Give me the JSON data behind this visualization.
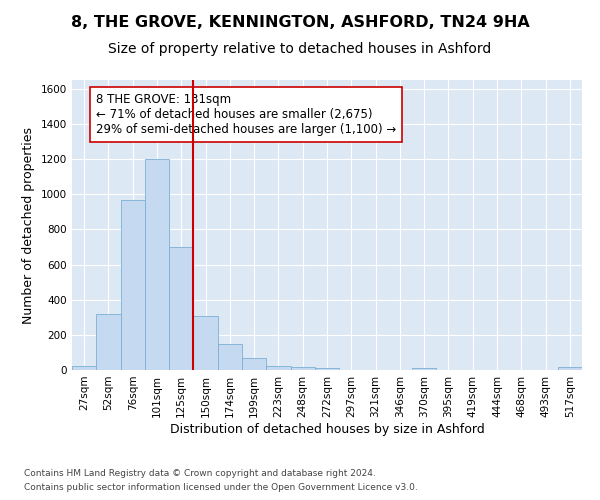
{
  "title": "8, THE GROVE, KENNINGTON, ASHFORD, TN24 9HA",
  "subtitle": "Size of property relative to detached houses in Ashford",
  "xlabel": "Distribution of detached houses by size in Ashford",
  "ylabel": "Number of detached properties",
  "categories": [
    "27sqm",
    "52sqm",
    "76sqm",
    "101sqm",
    "125sqm",
    "150sqm",
    "174sqm",
    "199sqm",
    "223sqm",
    "248sqm",
    "272sqm",
    "297sqm",
    "321sqm",
    "346sqm",
    "370sqm",
    "395sqm",
    "419sqm",
    "444sqm",
    "468sqm",
    "493sqm",
    "517sqm"
  ],
  "values": [
    25,
    320,
    970,
    1200,
    700,
    310,
    150,
    70,
    25,
    15,
    10,
    0,
    0,
    0,
    10,
    0,
    0,
    0,
    0,
    0,
    15
  ],
  "bar_color": "#c5d9f0",
  "bar_edge_color": "#7bafd4",
  "bar_linewidth": 0.6,
  "vline_x": 4.5,
  "vline_color": "#cc0000",
  "annotation_text": "8 THE GROVE: 131sqm\n← 71% of detached houses are smaller (2,675)\n29% of semi-detached houses are larger (1,100) →",
  "annotation_box_color": "#ffffff",
  "annotation_box_edge": "#cc0000",
  "ylim": [
    0,
    1650
  ],
  "yticks": [
    0,
    200,
    400,
    600,
    800,
    1000,
    1200,
    1400,
    1600
  ],
  "plot_bg_color": "#dde8f5",
  "footer1": "Contains HM Land Registry data © Crown copyright and database right 2024.",
  "footer2": "Contains public sector information licensed under the Open Government Licence v3.0.",
  "title_fontsize": 11.5,
  "subtitle_fontsize": 10,
  "tick_fontsize": 7.5,
  "label_fontsize": 9,
  "footer_fontsize": 6.5,
  "ann_fontsize": 8.5
}
